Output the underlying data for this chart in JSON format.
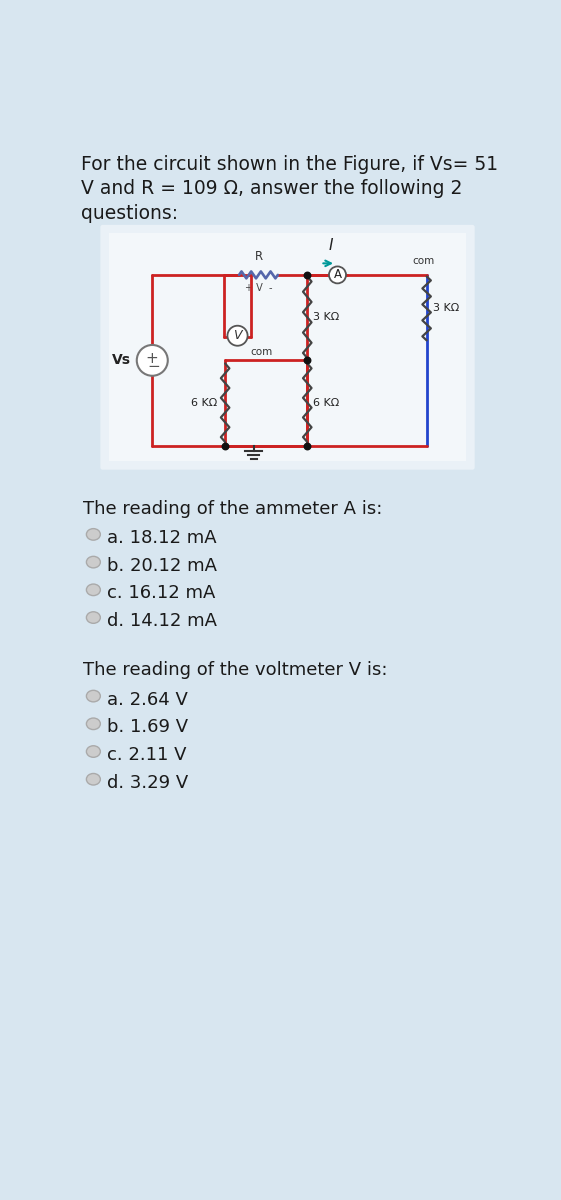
{
  "title_line1": "For the circuit shown in the Figure, if Vs= 51",
  "title_line2": "V and R = 109 Ω, answer the following 2",
  "title_line3": "questions:",
  "bg_color": "#d8e6f0",
  "circuit_bg": "#eaf1f7",
  "circuit_inner_bg": "#f5f8fb",
  "question1": "The reading of the ammeter A is:",
  "q1_options": [
    "a. 18.12 mA",
    "b. 20.12 mA",
    "c. 16.12 mA",
    "d. 14.12 mA"
  ],
  "question2": "The reading of the voltmeter V is:",
  "q2_options": [
    "a. 2.64 V",
    "b. 1.69 V",
    "c. 2.11 V",
    "d. 3.29 V"
  ],
  "red_color": "#cc2222",
  "blue_color": "#2244cc",
  "dark_red": "#aa1111",
  "wire_lw": 2.0,
  "text_color": "#1a1a1a",
  "resistor_color": "#444444",
  "res_lw": 1.6
}
